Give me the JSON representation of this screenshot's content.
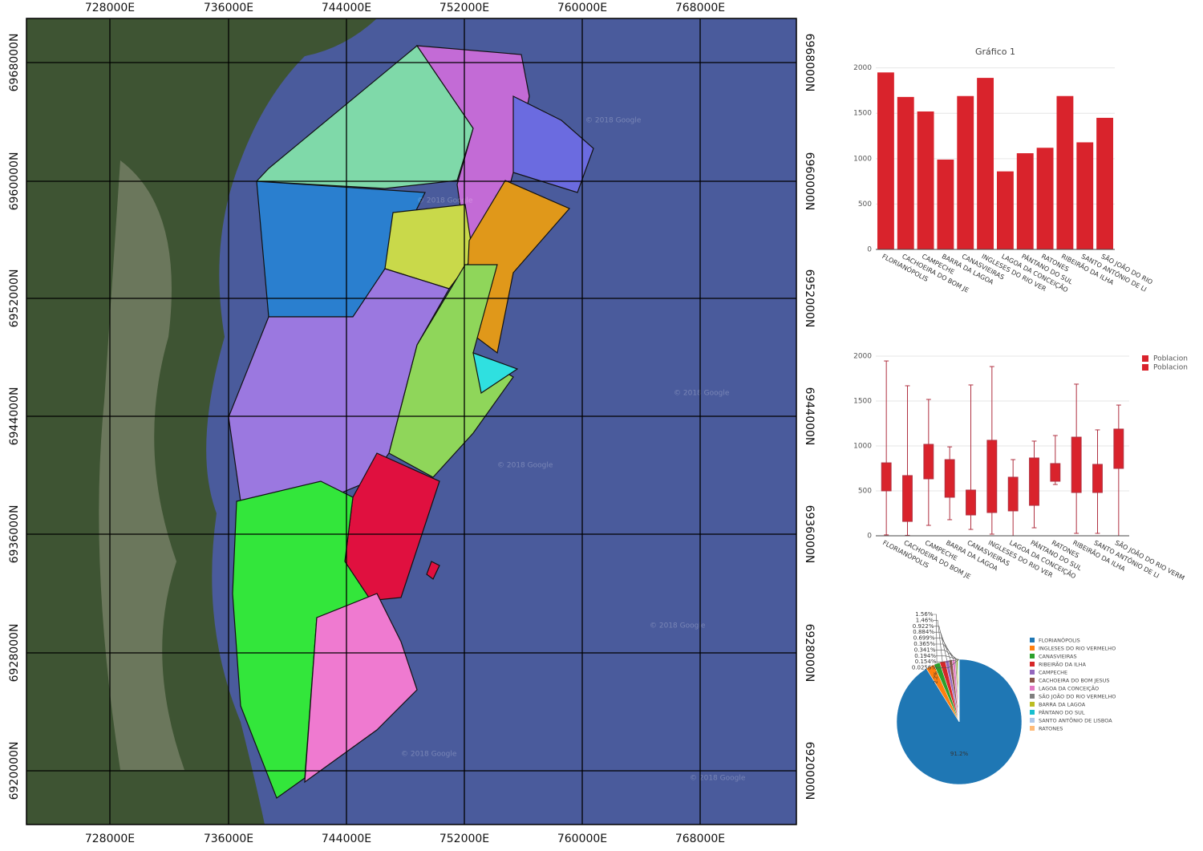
{
  "map": {
    "x_labels": [
      "728000E",
      "736000E",
      "744000E",
      "752000E",
      "760000E",
      "768000E"
    ],
    "y_labels": [
      "6968000N",
      "6960000N",
      "6952000N",
      "6944000N",
      "6936000N",
      "6928000N",
      "6920000N"
    ],
    "watermark": "© 2018 Google"
  },
  "chart_data": [
    {
      "type": "bar",
      "title": "Gráfico 1",
      "categories": [
        "FLORIANÓPOLIS",
        "CACHOEIRA DO BOM JE",
        "CAMPECHE",
        "BARRA DA LAGOA",
        "CANASVIEIRAS",
        "INGLESES DO RIO VER",
        "LAGOA DA CONCEIÇÃO",
        "PÂNTANO DO SUL",
        "RATONES",
        "RIBEIRÃO DA ILHA",
        "SANTO ANTÔNIO DE LI",
        "SÃO JOÃO DO RIO"
      ],
      "values": [
        1950,
        1680,
        1520,
        990,
        1690,
        1890,
        860,
        1060,
        1120,
        1690,
        1180,
        1450
      ],
      "color": "#d9232c",
      "ylim": [
        0,
        2050
      ],
      "yticks": [
        0,
        500,
        1000,
        1500,
        2000
      ],
      "grid": true
    },
    {
      "type": "box",
      "categories": [
        "FLORIANÓPOLIS",
        "CACHOEIRA DO BOM JE",
        "CAMPECHE",
        "BARRA DA LAGOA",
        "CANASVIEIRAS",
        "INGLESES DO RIO VER",
        "LAGOA DA CONCEIÇÃO",
        "PÂNTANO DO SUL",
        "RATONES",
        "RIBEIRÃO DA ILHA",
        "SANTO ANTÔNIO DE LI",
        "SÃO JOÃO DO RIO VERM"
      ],
      "low": [
        10,
        5,
        116,
        179,
        71,
        18,
        0,
        89,
        571,
        27,
        27,
        0
      ],
      "q1": [
        500,
        160,
        634,
        429,
        232,
        259,
        277,
        339,
        607,
        482,
        482,
        750
      ],
      "q3": [
        812,
        670,
        1018,
        848,
        509,
        1063,
        652,
        866,
        804,
        1098,
        795,
        1188
      ],
      "high": [
        1946,
        1670,
        1518,
        990,
        1679,
        1884,
        848,
        1054,
        1116,
        1688,
        1179,
        1455
      ],
      "legend": [
        "Poblacion",
        "Poblacion"
      ],
      "color": "#d9232c",
      "ylim": [
        0,
        2000
      ],
      "yticks": [
        0,
        500,
        1000,
        1500,
        2000
      ],
      "grid": true
    },
    {
      "type": "pie",
      "categories": [
        "FLORIANÓPOLIS",
        "INGLESES DO RIO VERMELHO",
        "CANASVIEIRAS",
        "RIBEIRÃO DA ILHA",
        "CAMPECHE",
        "CACHOEIRA DO BOM JESUS",
        "LAGOA DA CONCEIÇÃO",
        "SÃO JOÃO DO RIO VERMELHO",
        "BARRA DA LAGOA",
        "PÂNTANO DO SUL",
        "SANTO ANTÔNIO DE LISBOA",
        "RATONES"
      ],
      "values": [
        91.2,
        2.2,
        1.56,
        1.46,
        0.922,
        0.884,
        0.699,
        0.365,
        0.341,
        0.194,
        0.154,
        0.0256
      ],
      "value_labels": [
        "91.2%",
        "2.2%",
        "1.56%",
        "1.46%",
        "0.922%",
        "0.884%",
        "0.699%",
        "0.365%",
        "0.341%",
        "0.194%",
        "0.154%",
        "0.0256%"
      ],
      "colors": [
        "#1f77b4",
        "#ff7f0e",
        "#2ca02c",
        "#d62728",
        "#9467bd",
        "#8c564b",
        "#e377c2",
        "#7f7f7f",
        "#bcbd22",
        "#17becf",
        "#aec7e8",
        "#ffbb78"
      ]
    }
  ]
}
